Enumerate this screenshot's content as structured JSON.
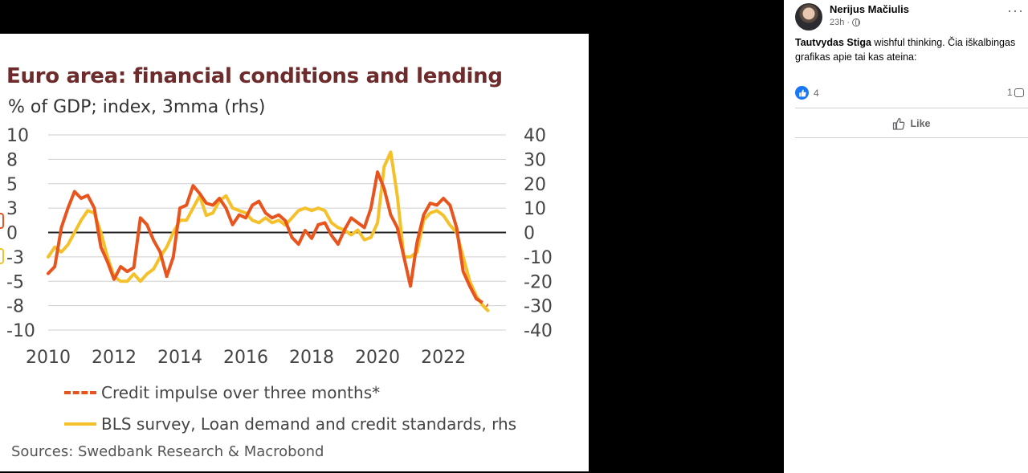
{
  "post": {
    "author": "Nerijus Mačiulis",
    "time": "23h",
    "comment_author": "Tautvydas Stiga",
    "comment_text": " wishful thinking. Čia iškalbingas grafikas apie tai kas ateina:",
    "reaction_count": "4",
    "comment_count": "1",
    "like_label": "Like",
    "icons": [
      "globe-icon",
      "more-options-icon",
      "like-reaction-icon",
      "comment-icon",
      "thumbs-up-icon"
    ],
    "colors": {
      "link": "#1877f2",
      "muted": "#65676b"
    }
  },
  "chart_data": {
    "type": "line",
    "title": "Euro area: financial conditions and lending",
    "subtitle": "% of GDP; index, 3mma (rhs)",
    "xlabel": "",
    "ylabel": "",
    "x_ticks": [
      "2010",
      "2012",
      "2014",
      "2016",
      "2018",
      "2020",
      "2022"
    ],
    "y_left_ticks": [
      "10",
      "8",
      "5",
      "3",
      "0",
      "-3",
      "-5",
      "-8",
      "-10"
    ],
    "y_right_ticks": [
      "40",
      "30",
      "20",
      "10",
      "0",
      "-10",
      "-20",
      "-30",
      "-40"
    ],
    "ylim_left": [
      -10,
      10
    ],
    "ylim_right": [
      -40,
      40
    ],
    "xlim": [
      2010,
      2023.9
    ],
    "grid": true,
    "legend_position": "bottom",
    "source": "Sources: Swedbank Research & Macrobond",
    "series": [
      {
        "name": "Credit impulse over three months*",
        "axis": "left",
        "color": "#e8541e",
        "style": "solid-then-dashed",
        "dashed_from": 2023.1,
        "x": [
          2010.0,
          2010.2,
          2010.4,
          2010.6,
          2010.8,
          2011.0,
          2011.2,
          2011.4,
          2011.6,
          2011.8,
          2012.0,
          2012.2,
          2012.4,
          2012.6,
          2012.8,
          2013.0,
          2013.2,
          2013.4,
          2013.6,
          2013.8,
          2014.0,
          2014.2,
          2014.4,
          2014.6,
          2014.8,
          2015.0,
          2015.2,
          2015.4,
          2015.6,
          2015.8,
          2016.0,
          2016.2,
          2016.4,
          2016.6,
          2016.8,
          2017.0,
          2017.2,
          2017.4,
          2017.6,
          2017.8,
          2018.0,
          2018.2,
          2018.4,
          2018.6,
          2018.8,
          2019.0,
          2019.2,
          2019.4,
          2019.6,
          2019.8,
          2020.0,
          2020.2,
          2020.4,
          2020.6,
          2020.8,
          2021.0,
          2021.2,
          2021.4,
          2021.6,
          2021.8,
          2022.0,
          2022.2,
          2022.4,
          2022.6,
          2022.8,
          2023.0,
          2023.1,
          2023.2,
          2023.35
        ],
        "values": [
          -4.2,
          -3.5,
          0.5,
          2.5,
          4.2,
          3.5,
          3.8,
          2.5,
          -1.5,
          -3.0,
          -4.8,
          -3.5,
          -4.0,
          -3.6,
          1.5,
          0.8,
          -0.8,
          -2.0,
          -4.5,
          -2.5,
          2.5,
          2.8,
          4.8,
          4.0,
          3.0,
          2.8,
          3.5,
          2.5,
          0.8,
          1.8,
          1.5,
          2.8,
          3.2,
          2.0,
          1.5,
          1.8,
          1.2,
          -0.5,
          -1.2,
          0.2,
          -0.6,
          0.8,
          1.0,
          -0.3,
          -1.2,
          0.3,
          1.5,
          1.0,
          0.5,
          2.5,
          6.2,
          4.5,
          1.8,
          0.5,
          -2.5,
          -5.5,
          -1.0,
          1.8,
          3.0,
          2.8,
          3.5,
          2.8,
          0.5,
          -4.0,
          -5.5,
          -6.8,
          -7.0,
          -7.2,
          -7.5
        ],
        "values_note": ""
      },
      {
        "name": "BLS survey, Loan demand and credit standards, rhs",
        "axis": "right",
        "color": "#f5c12b",
        "style": "solid",
        "x": [
          2010.0,
          2010.2,
          2010.4,
          2010.6,
          2010.8,
          2011.0,
          2011.2,
          2011.4,
          2011.6,
          2011.8,
          2012.0,
          2012.2,
          2012.4,
          2012.6,
          2012.8,
          2013.0,
          2013.2,
          2013.4,
          2013.6,
          2013.8,
          2014.0,
          2014.2,
          2014.4,
          2014.6,
          2014.8,
          2015.0,
          2015.2,
          2015.4,
          2015.6,
          2015.8,
          2016.0,
          2016.2,
          2016.4,
          2016.6,
          2016.8,
          2017.0,
          2017.2,
          2017.4,
          2017.6,
          2017.8,
          2018.0,
          2018.2,
          2018.4,
          2018.6,
          2018.8,
          2019.0,
          2019.2,
          2019.4,
          2019.6,
          2019.8,
          2020.0,
          2020.2,
          2020.4,
          2020.6,
          2020.8,
          2021.0,
          2021.2,
          2021.4,
          2021.6,
          2021.8,
          2022.0,
          2022.2,
          2022.4,
          2022.6,
          2022.8,
          2023.0,
          2023.2,
          2023.35
        ],
        "values": [
          -10,
          -6,
          -8,
          -5,
          0,
          5,
          9,
          8,
          0,
          -10,
          -18,
          -20,
          -20,
          -17,
          -20,
          -17,
          -15,
          -10,
          -6,
          0,
          5,
          5,
          10,
          15,
          7,
          8,
          13,
          15,
          10,
          9,
          8,
          5,
          4,
          6,
          4,
          5,
          3,
          6,
          9,
          10,
          9,
          10,
          9,
          4,
          2,
          1,
          -1,
          1,
          -3,
          -2,
          4,
          27,
          33,
          15,
          -10,
          -10,
          -8,
          5,
          8,
          9,
          7,
          3,
          0,
          -10,
          -20,
          -26,
          -30,
          -32
        ]
      }
    ]
  }
}
